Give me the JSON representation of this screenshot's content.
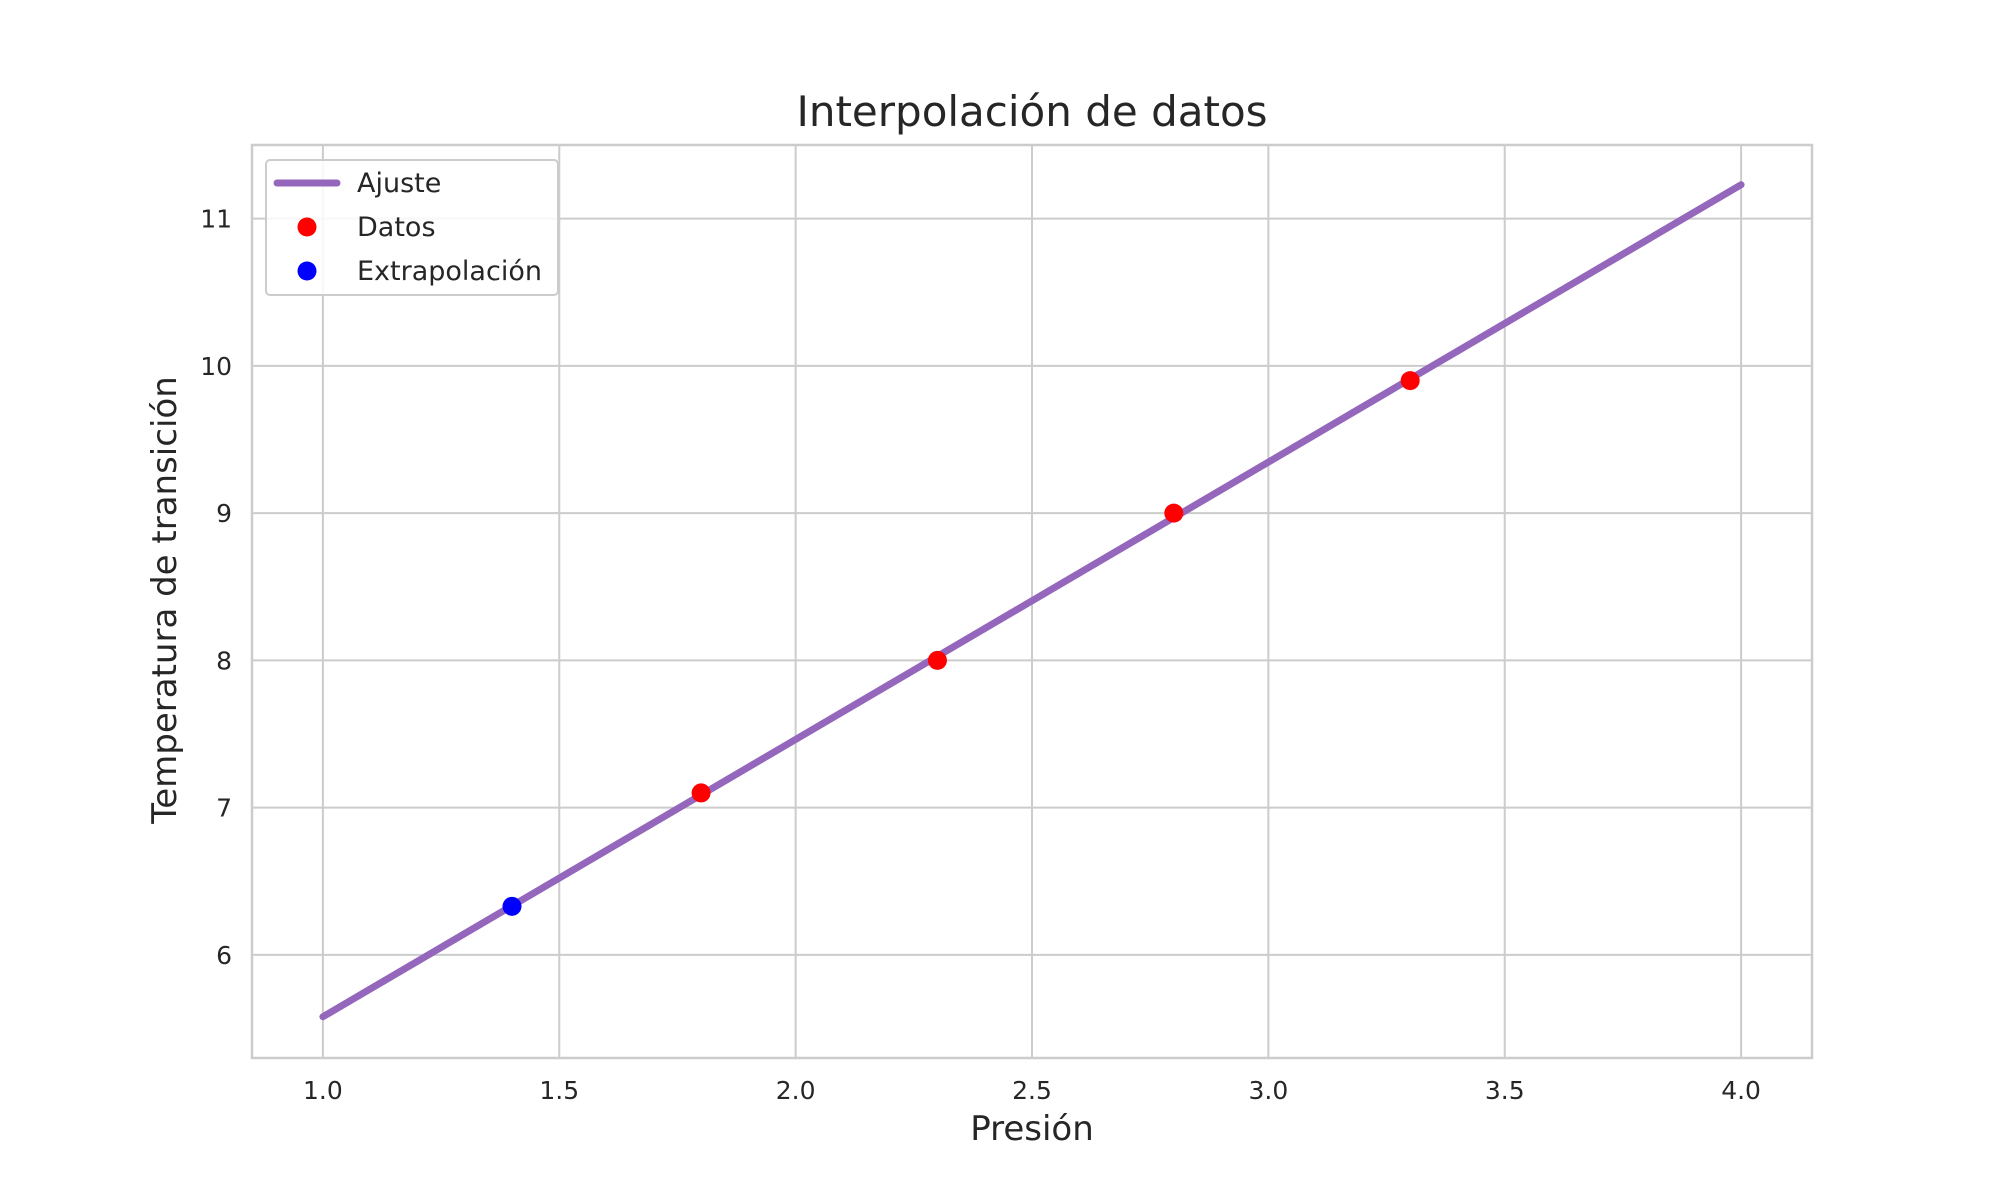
{
  "chart_data": {
    "type": "line",
    "title": "Interpolación de datos",
    "xlabel": "Presión",
    "ylabel": "Temperatura de transición",
    "xlim": [
      0.85,
      4.15
    ],
    "ylim": [
      5.3,
      11.5
    ],
    "xticks": [
      1.0,
      1.5,
      2.0,
      2.5,
      3.0,
      3.5,
      4.0
    ],
    "xtick_labels": [
      "1.0",
      "1.5",
      "2.0",
      "2.5",
      "3.0",
      "3.5",
      "4.0"
    ],
    "yticks": [
      6,
      7,
      8,
      9,
      10,
      11
    ],
    "ytick_labels": [
      "6",
      "7",
      "8",
      "9",
      "10",
      "11"
    ],
    "grid": true,
    "legend_position": "top-left",
    "series": [
      {
        "name": "Ajuste",
        "kind": "line",
        "color": "#9467bd",
        "x": [
          1.0,
          4.0
        ],
        "y": [
          5.58,
          11.23
        ]
      },
      {
        "name": "Datos",
        "kind": "scatter",
        "color": "#ff0000",
        "x": [
          1.8,
          2.3,
          2.8,
          3.3
        ],
        "y": [
          7.1,
          8.0,
          9.0,
          9.9
        ]
      },
      {
        "name": "Extrapolación",
        "kind": "scatter",
        "color": "#0000ff",
        "x": [
          1.4
        ],
        "y": [
          6.33
        ]
      }
    ]
  }
}
